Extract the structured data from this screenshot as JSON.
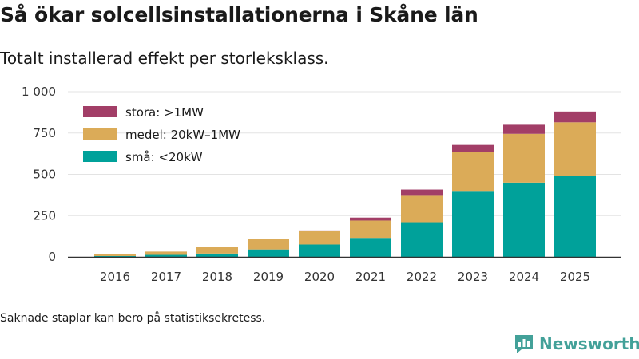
{
  "header": {
    "title": "Så ökar solcellsinstallationerna i Skåne län",
    "subtitle": "Totalt installerad effekt per storleksklass."
  },
  "footnote": "Saknade staplar kan bero på statistiksekretess.",
  "brand": {
    "name": "Newsworthy",
    "icon": "newsworthy-logo-icon"
  },
  "colors": {
    "small": "#00a19a",
    "medium": "#dbab58",
    "large": "#a23e67",
    "grid": "#e3e3e3",
    "axis": "#333333"
  },
  "chart_data": {
    "type": "bar",
    "stacked": true,
    "categories": [
      "2016",
      "2017",
      "2018",
      "2019",
      "2020",
      "2021",
      "2022",
      "2023",
      "2024",
      "2025"
    ],
    "series": [
      {
        "name": "små: <20kW",
        "key": "small",
        "values": [
          5,
          12,
          20,
          45,
          75,
          115,
          210,
          395,
          450,
          490
        ]
      },
      {
        "name": "medel: 20kW–1MW",
        "key": "medium",
        "values": [
          12,
          20,
          40,
          65,
          83,
          105,
          160,
          240,
          295,
          325
        ]
      },
      {
        "name": "stora: >1MW",
        "key": "large",
        "values": [
          0,
          0,
          0,
          0,
          2,
          18,
          38,
          43,
          55,
          65
        ]
      }
    ],
    "legend_order": [
      "large",
      "medium",
      "small"
    ],
    "yticks": [
      0,
      250,
      500,
      750,
      1000
    ],
    "ytick_labels": [
      "0",
      "250",
      "500",
      "750",
      "1 000"
    ],
    "ylim": [
      0,
      1000
    ],
    "grid": true,
    "legend_position": "top-left"
  }
}
